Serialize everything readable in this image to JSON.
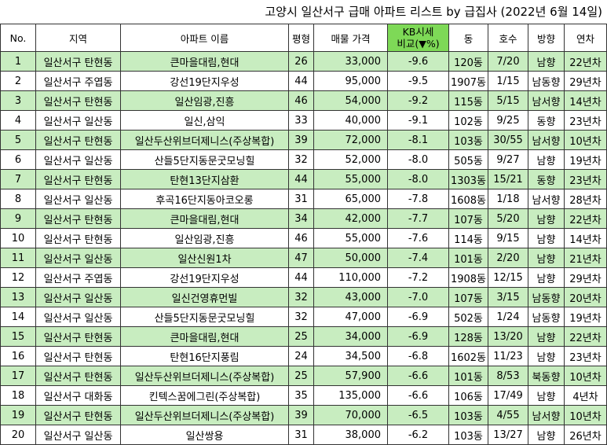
{
  "title": "고양시 일산서구 급매 아파트 리스트 by 급집사 (2022년 6월 14일)",
  "headers": {
    "no": "No.",
    "region": "지역",
    "apt": "아파트 이름",
    "size": "평형",
    "price": "매물 가격",
    "kb_line1": "KB시세",
    "kb_line2": "비교(▼%)",
    "dong": "동",
    "ho": "호수",
    "dir": "방향",
    "age": "연차"
  },
  "colors": {
    "band": "#c8edc0",
    "kb_header": "#7ed957"
  },
  "rows": [
    {
      "no": "1",
      "region": "일산서구 탄현동",
      "apt": "큰마을대림,현대",
      "size": "26",
      "price": "33,000",
      "kb": "-9.6",
      "dong": "120동",
      "ho": "7/20",
      "dir": "남향",
      "age": "22년차"
    },
    {
      "no": "2",
      "region": "일산서구 주엽동",
      "apt": "강선19단지우성",
      "size": "44",
      "price": "95,000",
      "kb": "-9.5",
      "dong": "1907동",
      "ho": "1/15",
      "dir": "남동향",
      "age": "29년차"
    },
    {
      "no": "3",
      "region": "일산서구 탄현동",
      "apt": "일산임광,진흥",
      "size": "46",
      "price": "54,000",
      "kb": "-9.2",
      "dong": "115동",
      "ho": "5/15",
      "dir": "남서향",
      "age": "14년차"
    },
    {
      "no": "4",
      "region": "일산서구 일산동",
      "apt": "일신,삼익",
      "size": "33",
      "price": "40,000",
      "kb": "-9.1",
      "dong": "102동",
      "ho": "9/25",
      "dir": "동향",
      "age": "23년차"
    },
    {
      "no": "5",
      "region": "일산서구 탄현동",
      "apt": "일산두산위브더제니스(주상복합)",
      "size": "39",
      "price": "72,000",
      "kb": "-8.1",
      "dong": "103동",
      "ho": "30/55",
      "dir": "남서향",
      "age": "10년차"
    },
    {
      "no": "6",
      "region": "일산서구 일산동",
      "apt": "산들5단지동문굿모닝힐",
      "size": "32",
      "price": "52,000",
      "kb": "-8.0",
      "dong": "505동",
      "ho": "9/27",
      "dir": "남향",
      "age": "19년차"
    },
    {
      "no": "7",
      "region": "일산서구 탄현동",
      "apt": "탄현13단지삼환",
      "size": "44",
      "price": "55,000",
      "kb": "-8.0",
      "dong": "1303동",
      "ho": "15/21",
      "dir": "동향",
      "age": "23년차"
    },
    {
      "no": "8",
      "region": "일산서구 일산동",
      "apt": "후곡16단지동아코오롱",
      "size": "31",
      "price": "65,000",
      "kb": "-7.8",
      "dong": "1608동",
      "ho": "1/18",
      "dir": "남서향",
      "age": "28년차"
    },
    {
      "no": "9",
      "region": "일산서구 탄현동",
      "apt": "큰마을대림,현대",
      "size": "34",
      "price": "42,000",
      "kb": "-7.7",
      "dong": "107동",
      "ho": "5/20",
      "dir": "남향",
      "age": "22년차"
    },
    {
      "no": "10",
      "region": "일산서구 탄현동",
      "apt": "일산임광,진흥",
      "size": "46",
      "price": "55,000",
      "kb": "-7.6",
      "dong": "114동",
      "ho": "9/15",
      "dir": "남향",
      "age": "14년차"
    },
    {
      "no": "11",
      "region": "일산서구 일산동",
      "apt": "일산신원1차",
      "size": "47",
      "price": "50,000",
      "kb": "-7.4",
      "dong": "101동",
      "ho": "2/20",
      "dir": "남향",
      "age": "21년차"
    },
    {
      "no": "12",
      "region": "일산서구 주엽동",
      "apt": "강선19단지우성",
      "size": "44",
      "price": "110,000",
      "kb": "-7.2",
      "dong": "1908동",
      "ho": "12/15",
      "dir": "남향",
      "age": "29년차"
    },
    {
      "no": "13",
      "region": "일산서구 일산동",
      "apt": "일신건영휴먼빌",
      "size": "32",
      "price": "43,000",
      "kb": "-7.0",
      "dong": "107동",
      "ho": "3/15",
      "dir": "남동향",
      "age": "20년차"
    },
    {
      "no": "14",
      "region": "일산서구 일산동",
      "apt": "산들5단지동문굿모닝힐",
      "size": "32",
      "price": "47,000",
      "kb": "-6.9",
      "dong": "502동",
      "ho": "1/24",
      "dir": "남동향",
      "age": "19년차"
    },
    {
      "no": "15",
      "region": "일산서구 탄현동",
      "apt": "큰마을대림,현대",
      "size": "25",
      "price": "34,000",
      "kb": "-6.9",
      "dong": "128동",
      "ho": "13/20",
      "dir": "남향",
      "age": "22년차"
    },
    {
      "no": "16",
      "region": "일산서구 탄현동",
      "apt": "탄현16단지풍림",
      "size": "24",
      "price": "34,500",
      "kb": "-6.8",
      "dong": "1602동",
      "ho": "11/23",
      "dir": "남향",
      "age": "23년차"
    },
    {
      "no": "17",
      "region": "일산서구 탄현동",
      "apt": "일산두산위브더제니스(주상복합)",
      "size": "25",
      "price": "57,900",
      "kb": "-6.6",
      "dong": "101동",
      "ho": "8/53",
      "dir": "북동향",
      "age": "10년차"
    },
    {
      "no": "18",
      "region": "일산서구 대화동",
      "apt": "킨텍스꿈에그린(주상복합)",
      "size": "35",
      "price": "135,000",
      "kb": "-6.6",
      "dong": "106동",
      "ho": "17/49",
      "dir": "남향",
      "age": "4년차"
    },
    {
      "no": "19",
      "region": "일산서구 탄현동",
      "apt": "일산두산위브더제니스(주상복합)",
      "size": "39",
      "price": "70,000",
      "kb": "-6.5",
      "dong": "103동",
      "ho": "4/55",
      "dir": "남서향",
      "age": "10년차"
    },
    {
      "no": "20",
      "region": "일산서구 일산동",
      "apt": "일산쌍용",
      "size": "31",
      "price": "38,000",
      "kb": "-6.2",
      "dong": "103동",
      "ho": "13/27",
      "dir": "남향",
      "age": "26년차"
    }
  ]
}
